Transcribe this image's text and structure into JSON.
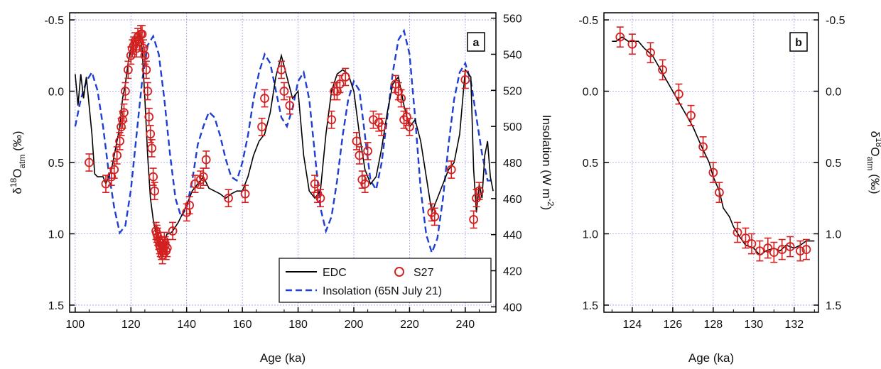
{
  "chart_data": [
    {
      "panel": "a",
      "type": "line",
      "xlabel": "Age (ka)",
      "ylabel_left": "δ18Oatm (‰)",
      "ylabel_right": "Insolation (W m-2)",
      "xlim": [
        98,
        251
      ],
      "ylim_left": [
        1.55,
        -0.55
      ],
      "ylim_right": [
        397,
        563
      ],
      "y_left_inverted": true,
      "x_ticks": [
        100,
        120,
        140,
        160,
        180,
        200,
        220,
        240
      ],
      "y_left_ticks": [
        -0.5,
        0.0,
        0.5,
        1.0,
        1.5
      ],
      "y_left_tick_labels": [
        "-0.5",
        "0.0",
        "0.5",
        "1.0",
        "1.5"
      ],
      "y_right_ticks": [
        400,
        420,
        440,
        460,
        480,
        500,
        520,
        540,
        560
      ],
      "grid": true,
      "legend_position": "bottom-right",
      "legend": [
        "EDC",
        "S27",
        "Insolation (65N July 21)"
      ],
      "series": [
        {
          "name": "EDC",
          "kind": "line",
          "axis": "left",
          "color": "#000000",
          "x": [
            100,
            101,
            102,
            103,
            104,
            105,
            106,
            107,
            108,
            109,
            110,
            111,
            112,
            113,
            114,
            115,
            116,
            117,
            118,
            119,
            120,
            121,
            122,
            123,
            124,
            125,
            126,
            127,
            128,
            129,
            130,
            131,
            132,
            133,
            134,
            135,
            136,
            137,
            138,
            140,
            142,
            144,
            146,
            148,
            150,
            152,
            154,
            156,
            158,
            160,
            162,
            164,
            166,
            168,
            170,
            172,
            174,
            176,
            178,
            180,
            182,
            184,
            186,
            188,
            190,
            192,
            194,
            196,
            198,
            200,
            202,
            204,
            206,
            208,
            210,
            212,
            214,
            216,
            218,
            220,
            222,
            224,
            226,
            228,
            230,
            232,
            234,
            236,
            238,
            240,
            242,
            243,
            244,
            245,
            246,
            247,
            248,
            249,
            250
          ],
          "y": [
            -0.12,
            0.1,
            -0.12,
            0.05,
            -0.1,
            0.1,
            0.3,
            0.58,
            0.6,
            0.6,
            0.6,
            0.65,
            0.6,
            0.55,
            0.45,
            0.35,
            0.25,
            0.05,
            -0.05,
            -0.2,
            -0.3,
            -0.35,
            -0.38,
            -0.4,
            -0.3,
            0.05,
            0.45,
            0.75,
            0.9,
            1.0,
            1.1,
            1.12,
            1.05,
            1.0,
            1.0,
            0.98,
            0.95,
            0.92,
            0.88,
            0.8,
            0.7,
            0.65,
            0.6,
            0.68,
            0.7,
            0.72,
            0.75,
            0.72,
            0.7,
            0.7,
            0.6,
            0.45,
            0.35,
            0.3,
            0.15,
            -0.1,
            -0.25,
            -0.1,
            0.05,
            0.0,
            0.45,
            0.7,
            0.75,
            0.7,
            0.3,
            0.0,
            -0.12,
            -0.15,
            -0.12,
            0.0,
            0.3,
            0.55,
            0.65,
            0.6,
            0.4,
            0.15,
            -0.05,
            -0.1,
            0.1,
            0.25,
            0.2,
            0.35,
            0.6,
            0.85,
            0.75,
            0.65,
            0.55,
            0.5,
            0.3,
            -0.15,
            -0.1,
            0.55,
            0.85,
            0.65,
            0.75,
            0.45,
            0.35,
            0.6,
            0.7
          ]
        },
        {
          "name": "S27",
          "kind": "scatter",
          "axis": "left",
          "color": "#d42020",
          "x": [
            105,
            111,
            113,
            114,
            115,
            116,
            116.5,
            117,
            117.5,
            118,
            119,
            120,
            120.5,
            121,
            121.5,
            122,
            122.5,
            123,
            123.5,
            124,
            124.5,
            125,
            125.5,
            126,
            126.5,
            127,
            127.5,
            128,
            128.5,
            129,
            129.3,
            129.6,
            130,
            130.3,
            130.6,
            131,
            131.3,
            131.6,
            132,
            132.3,
            132.6,
            133,
            135,
            140,
            141,
            143,
            145,
            146,
            147,
            155,
            161,
            167,
            168,
            174,
            175,
            177,
            186,
            187,
            188,
            192,
            193,
            194,
            195,
            197,
            201,
            202,
            203,
            204,
            205,
            207,
            209,
            210,
            215,
            216,
            217,
            218,
            219,
            220,
            228,
            229,
            235,
            240,
            243,
            244,
            245
          ],
          "y": [
            0.5,
            0.65,
            0.6,
            0.55,
            0.45,
            0.35,
            0.25,
            0.2,
            0.15,
            0.0,
            -0.15,
            -0.25,
            -0.3,
            -0.32,
            -0.35,
            -0.3,
            -0.38,
            -0.35,
            -0.4,
            -0.4,
            -0.3,
            -0.25,
            -0.15,
            0.0,
            0.18,
            0.3,
            0.4,
            0.6,
            0.7,
            0.98,
            1.0,
            1.02,
            1.05,
            1.08,
            1.1,
            1.12,
            1.15,
            1.1,
            1.05,
            1.08,
            1.12,
            1.1,
            0.98,
            0.85,
            0.8,
            0.65,
            0.62,
            0.6,
            0.48,
            0.75,
            0.72,
            0.25,
            0.05,
            -0.15,
            0.0,
            0.1,
            0.65,
            0.72,
            0.75,
            0.2,
            0.0,
            0.0,
            -0.05,
            -0.1,
            0.35,
            0.45,
            0.62,
            0.65,
            0.42,
            0.2,
            0.22,
            0.25,
            -0.05,
            0.0,
            0.05,
            0.2,
            0.18,
            0.25,
            0.85,
            0.88,
            0.55,
            -0.08,
            0.9,
            0.75,
            0.7
          ],
          "err": 0.06
        },
        {
          "name": "Insolation (65N July 21)",
          "kind": "line",
          "axis": "right",
          "color": "#1f3fd0",
          "dash": "dashed",
          "x": [
            100,
            102,
            104,
            106,
            108,
            110,
            112,
            114,
            116,
            118,
            120,
            122,
            124,
            126,
            128,
            130,
            132,
            134,
            136,
            138,
            140,
            142,
            144,
            146,
            148,
            150,
            152,
            154,
            156,
            158,
            160,
            162,
            164,
            166,
            168,
            170,
            172,
            174,
            176,
            178,
            180,
            182,
            184,
            186,
            188,
            190,
            192,
            194,
            196,
            198,
            200,
            202,
            204,
            206,
            208,
            210,
            212,
            214,
            216,
            218,
            220,
            222,
            224,
            226,
            228,
            230,
            232,
            234,
            236,
            238,
            240,
            242,
            244,
            246,
            248,
            250
          ],
          "y": [
            500,
            515,
            525,
            530,
            520,
            500,
            475,
            455,
            441,
            445,
            465,
            495,
            525,
            545,
            550,
            540,
            515,
            485,
            460,
            450,
            455,
            470,
            490,
            500,
            508,
            505,
            495,
            482,
            472,
            470,
            480,
            495,
            515,
            530,
            540,
            535,
            520,
            505,
            500,
            510,
            525,
            530,
            515,
            485,
            455,
            442,
            450,
            470,
            495,
            515,
            525,
            520,
            495,
            470,
            465,
            480,
            505,
            530,
            548,
            553,
            540,
            505,
            465,
            440,
            430,
            438,
            460,
            490,
            515,
            530,
            535,
            525,
            505,
            485,
            470,
            470
          ]
        }
      ]
    },
    {
      "panel": "b",
      "type": "line",
      "xlabel": "Age (ka)",
      "ylabel_right": "δ18Oatm (‰)",
      "xlim": [
        122.6,
        133.2
      ],
      "ylim": [
        1.55,
        -0.55
      ],
      "y_inverted": true,
      "x_ticks": [
        124,
        126,
        128,
        130,
        132
      ],
      "y_ticks": [
        -0.5,
        0.0,
        0.5,
        1.0,
        1.5
      ],
      "y_tick_labels": [
        "-0.5",
        "0.0",
        "0.5",
        "1.0",
        "1.5"
      ],
      "grid": true,
      "series": [
        {
          "name": "EDC",
          "kind": "line",
          "color": "#000000",
          "x": [
            123.0,
            123.2,
            123.5,
            123.8,
            124.0,
            124.3,
            124.6,
            125.0,
            125.4,
            125.8,
            126.2,
            126.6,
            127.0,
            127.4,
            127.8,
            128.0,
            128.3,
            128.5,
            128.8,
            129.0,
            129.3,
            129.6,
            130.0,
            130.3,
            130.6,
            131.0,
            131.3,
            131.6,
            132.0,
            132.3,
            132.6,
            133.0
          ],
          "y": [
            -0.35,
            -0.35,
            -0.38,
            -0.35,
            -0.35,
            -0.35,
            -0.3,
            -0.25,
            -0.15,
            -0.05,
            0.05,
            0.15,
            0.25,
            0.38,
            0.5,
            0.6,
            0.7,
            0.82,
            0.88,
            0.95,
            1.02,
            1.08,
            1.1,
            1.15,
            1.12,
            1.1,
            1.12,
            1.08,
            1.1,
            1.08,
            1.05,
            1.05
          ]
        },
        {
          "name": "S27",
          "kind": "scatter",
          "color": "#d42020",
          "x": [
            123.4,
            124.0,
            124.9,
            125.5,
            126.3,
            126.9,
            127.5,
            128.0,
            128.3,
            129.2,
            129.6,
            129.9,
            130.3,
            130.7,
            131.0,
            131.4,
            131.8,
            132.3,
            132.6
          ],
          "y": [
            -0.38,
            -0.33,
            -0.27,
            -0.15,
            0.02,
            0.17,
            0.39,
            0.57,
            0.71,
            0.99,
            1.03,
            1.07,
            1.12,
            1.1,
            1.13,
            1.11,
            1.09,
            1.12,
            1.11
          ],
          "err": 0.07
        }
      ]
    }
  ],
  "panel_a": {
    "letter": "a",
    "xlabel": "Age (ka)",
    "ylabel_main": "δ",
    "ylabel_sup": "18",
    "ylabel_sub": "O",
    "ylabel_sub2": "atm",
    "ylabel_unit": " (‰)",
    "y2label_main": "Insolation (W m",
    "y2label_sup": "-2",
    "y2label_end": ")",
    "x_tick_labels": [
      "100",
      "120",
      "140",
      "160",
      "180",
      "200",
      "220",
      "240"
    ],
    "y_tick_labels": [
      "-0.5",
      "0.0",
      "0.5",
      "1.0",
      "1.5"
    ],
    "y2_tick_labels": [
      "400",
      "420",
      "440",
      "460",
      "480",
      "500",
      "520",
      "540",
      "560"
    ],
    "legend_edc": "EDC",
    "legend_s27": "S27",
    "legend_insolation": "Insolation (65N July 21)"
  },
  "panel_b": {
    "letter": "b",
    "xlabel": "Age (ka)",
    "ylabel_main": "δ",
    "ylabel_sup": "18",
    "ylabel_sub": "O",
    "ylabel_sub2": "atm",
    "ylabel_unit": " (‰)",
    "x_tick_labels": [
      "124",
      "126",
      "128",
      "130",
      "132"
    ],
    "y_tick_labels": [
      "-0.5",
      "0.0",
      "0.5",
      "1.0",
      "1.5"
    ]
  },
  "colors": {
    "edc": "#000000",
    "s27": "#d42020",
    "insolation": "#1f3fd0",
    "grid": "#9a9ae8"
  }
}
